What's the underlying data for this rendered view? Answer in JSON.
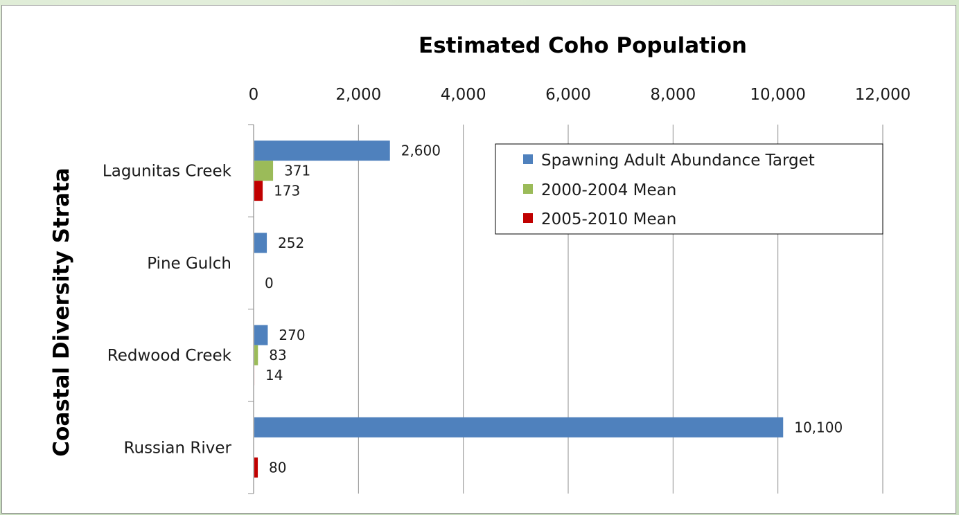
{
  "colors": {
    "series": [
      "#4f81bd",
      "#9bbb59",
      "#c00000"
    ],
    "grid": "#8c8c8c",
    "axis": "#8c8c8c"
  },
  "chart_data": {
    "type": "bar",
    "orientation": "horizontal",
    "title": "Estimated Coho Population",
    "xlabel": "",
    "ylabel": "Coastal Diversity Strata",
    "xlim": [
      0,
      12000
    ],
    "xticks": [
      0,
      2000,
      4000,
      6000,
      8000,
      10000,
      12000
    ],
    "xtick_labels": [
      "0",
      "2,000",
      "4,000",
      "6,000",
      "8,000",
      "10,000",
      "12,000"
    ],
    "x_axis_position": "top",
    "grid": true,
    "legend_position": "top-right",
    "categories": [
      "Lagunitas Creek",
      "Pine Gulch",
      "Redwood Creek",
      "Russian River"
    ],
    "series": [
      {
        "name": "Spawning Adult Abundance Target",
        "values": [
          2600,
          252,
          270,
          10100
        ],
        "labels": [
          "2,600",
          "252",
          "270",
          "10,100"
        ]
      },
      {
        "name": "2000-2004 Mean",
        "values": [
          371,
          null,
          83,
          null
        ],
        "labels": [
          "371",
          "",
          "83",
          ""
        ]
      },
      {
        "name": "2005-2010 Mean",
        "values": [
          173,
          0,
          14,
          80
        ],
        "labels": [
          "173",
          "0",
          "14",
          "80"
        ]
      }
    ]
  }
}
